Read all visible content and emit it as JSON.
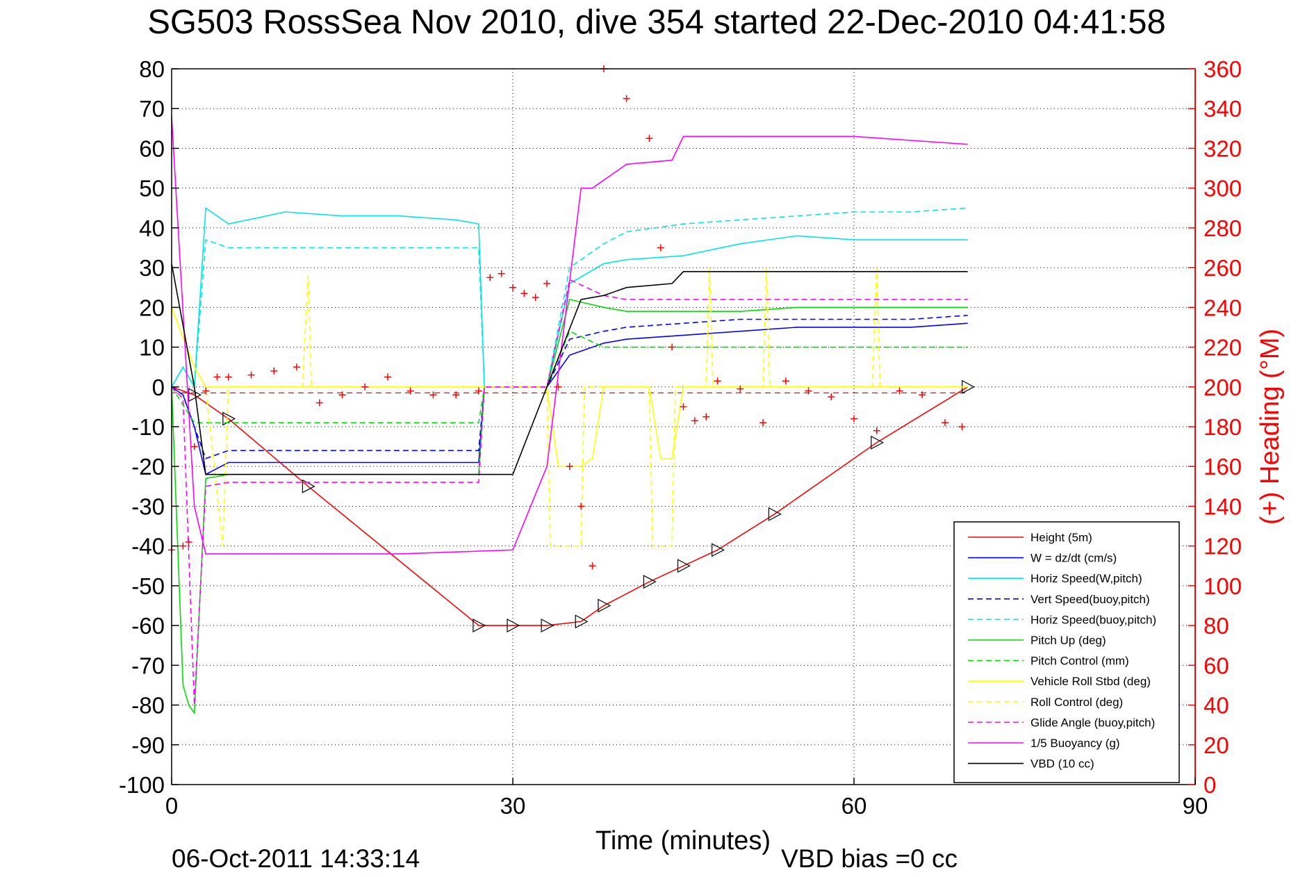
{
  "title": "SG503 RossSea Nov 2010, dive 354 started 22-Dec-2010 04:41:58",
  "footer": {
    "date": "06-Oct-2011 14:33:14",
    "vbd_bias": "VBD bias =0 cc"
  },
  "colors": {
    "left_axis": "#000000",
    "right_axis": "#ff0000",
    "grid": "#000000"
  },
  "chart_data": {
    "type": "line",
    "xlabel": "Time (minutes)",
    "ylabel": "",
    "y2label": "(+) Heading (°M)",
    "xlim": [
      0,
      90
    ],
    "ylim": [
      -100,
      80
    ],
    "y2lim": [
      0,
      360
    ],
    "xticks": [
      "0",
      "30",
      "60",
      "90"
    ],
    "yticks": [
      "80",
      "70",
      "60",
      "50",
      "40",
      "30",
      "20",
      "10",
      "0",
      "-10",
      "-20",
      "-30",
      "-40",
      "-50",
      "-60",
      "-70",
      "-80",
      "-90",
      "-100"
    ],
    "y2ticks": [
      "360",
      "340",
      "320",
      "300",
      "280",
      "260",
      "240",
      "220",
      "200",
      "180",
      "160",
      "140",
      "120",
      "100",
      "80",
      "60",
      "40",
      "20",
      "0"
    ],
    "grid": true,
    "legend_position": "bottom-right",
    "series": [
      {
        "name": "Height (5m)",
        "color": "#ff0000",
        "dash": "solid",
        "x": [
          0,
          2,
          5,
          12,
          27,
          30,
          33,
          36,
          38,
          42,
          45,
          48,
          53,
          62,
          70
        ],
        "y": [
          0,
          -2,
          -8,
          -25,
          -60,
          -60,
          -60,
          -59,
          -55,
          -49,
          -45,
          -41,
          -32,
          -14,
          0
        ]
      },
      {
        "name": "W = dz/dt (cm/s)",
        "color": "#0000ff",
        "dash": "solid",
        "x": [
          0,
          1,
          2,
          3,
          5,
          10,
          15,
          20,
          25,
          27,
          27.5,
          30,
          33,
          35,
          38,
          40,
          45,
          50,
          55,
          60,
          65,
          70
        ],
        "y": [
          0,
          -2,
          -10,
          -22,
          -19,
          -19,
          -19,
          -19,
          -19,
          -19,
          0,
          0,
          0,
          8,
          11,
          12,
          13,
          14,
          15,
          15,
          15,
          16
        ]
      },
      {
        "name": "Horiz Speed(W,pitch)",
        "color": "#00e5e5",
        "dash": "solid",
        "x": [
          0,
          1,
          2,
          3,
          5,
          10,
          15,
          20,
          25,
          27,
          27.5,
          30,
          33,
          35,
          38,
          40,
          45,
          50,
          55,
          60,
          65,
          70
        ],
        "y": [
          0,
          5,
          0,
          45,
          41,
          44,
          43,
          43,
          42,
          41,
          0,
          0,
          0,
          26,
          31,
          32,
          33,
          36,
          38,
          37,
          37,
          37
        ]
      },
      {
        "name": "Vert Speed(buoy,pitch)",
        "color": "#0000ff",
        "dash": "dashed",
        "x": [
          0,
          1,
          2,
          3,
          5,
          10,
          15,
          20,
          25,
          27,
          27.5,
          30,
          33,
          35,
          38,
          40,
          45,
          50,
          55,
          60,
          65,
          70
        ],
        "y": [
          0,
          -2,
          -10,
          -18,
          -16,
          -16,
          -16,
          -16,
          -16,
          -16,
          0,
          0,
          0,
          12,
          14,
          15,
          16,
          17,
          17,
          17,
          17,
          18
        ]
      },
      {
        "name": "Horiz Speed(buoy,pitch)",
        "color": "#00e5e5",
        "dash": "dashed",
        "x": [
          0,
          1,
          2,
          3,
          5,
          10,
          15,
          20,
          25,
          27,
          27.5,
          30,
          33,
          35,
          38,
          40,
          45,
          50,
          55,
          60,
          65,
          70
        ],
        "y": [
          0,
          5,
          0,
          37,
          35,
          35,
          35,
          35,
          35,
          35,
          0,
          0,
          0,
          30,
          36,
          39,
          41,
          42,
          43,
          44,
          44,
          45
        ]
      },
      {
        "name": "Pitch Up (deg)",
        "color": "#00dd00",
        "dash": "solid",
        "x": [
          0,
          1,
          1.5,
          2,
          3,
          5,
          10,
          15,
          20,
          25,
          27,
          27.5,
          30,
          33,
          35,
          38,
          40,
          45,
          50,
          55,
          60,
          65,
          70
        ],
        "y": [
          0,
          -75,
          -80,
          -82,
          -23,
          -22,
          -22,
          -22,
          -22,
          -22,
          -22,
          0,
          0,
          0,
          22,
          20,
          19,
          19,
          19,
          20,
          20,
          20,
          20
        ]
      },
      {
        "name": "Pitch Control (mm)",
        "color": "#00dd00",
        "dash": "dashed",
        "x": [
          0,
          2,
          3,
          5,
          10,
          15,
          20,
          25,
          27,
          27.5,
          30,
          33,
          35,
          38,
          40,
          45,
          50,
          55,
          60,
          65,
          70
        ],
        "y": [
          0,
          -9,
          -9,
          -9,
          -9,
          -9,
          -9,
          -9,
          -9,
          0,
          0,
          0,
          14,
          10,
          10,
          10,
          10,
          10,
          10,
          10,
          10
        ]
      },
      {
        "name": "Vehicle Roll Stbd (deg)",
        "color": "#ffff00",
        "dash": "solid",
        "x": [
          0,
          2,
          3,
          5,
          10,
          15,
          20,
          25,
          27,
          30,
          33,
          34,
          36,
          37,
          38,
          40,
          42,
          43,
          44,
          45,
          50,
          55,
          60,
          65,
          70
        ],
        "y": [
          20,
          5,
          0,
          0,
          0,
          0,
          0,
          0,
          0,
          0,
          0,
          -20,
          -20,
          -18,
          0,
          0,
          0,
          -18,
          -18,
          0,
          0,
          0,
          0,
          0,
          0
        ]
      },
      {
        "name": "Roll Control (deg)",
        "color": "#ffff00",
        "dash": "dashed",
        "x": [
          0,
          2,
          3,
          4.5,
          5,
          11.5,
          12,
          12.3,
          15,
          27,
          30,
          33,
          33.3,
          36,
          36.3,
          38,
          42,
          42.3,
          44,
          44.3,
          47,
          47.3,
          47.6,
          52,
          52.3,
          52.6,
          61.6,
          62,
          62.3,
          70
        ],
        "y": [
          20,
          5,
          0,
          -40,
          0,
          0,
          28,
          0,
          0,
          0,
          0,
          0,
          -40,
          -40,
          0,
          0,
          0,
          -40,
          -40,
          0,
          0,
          30,
          0,
          0,
          30,
          0,
          0,
          30,
          0,
          0
        ]
      },
      {
        "name": "Glide Angle (buoy,pitch)",
        "color": "#ff00ff",
        "dash": "dashed",
        "x": [
          0,
          1,
          2,
          3,
          5,
          10,
          15,
          20,
          25,
          27,
          27.5,
          30,
          33,
          35,
          38,
          40,
          45,
          50,
          55,
          60,
          65,
          70
        ],
        "y": [
          0,
          -3,
          -80,
          -25,
          -24,
          -24,
          -24,
          -24,
          -24,
          -24,
          0,
          0,
          0,
          27,
          23,
          22,
          22,
          22,
          22,
          22,
          22,
          22
        ]
      },
      {
        "name": "1/5 Buoyancy (g)",
        "color": "#ff00ff",
        "dash": "solid",
        "x": [
          0,
          2,
          3,
          10,
          20,
          30,
          33,
          36,
          37,
          38,
          40,
          44,
          45,
          50,
          60,
          65,
          70
        ],
        "y": [
          68,
          -30,
          -42,
          -42,
          -42,
          -41,
          -20,
          50,
          50,
          52,
          56,
          57,
          63,
          63,
          63,
          62,
          61
        ]
      },
      {
        "name": "VBD (10 cc)",
        "color": "#000000",
        "dash": "solid",
        "x": [
          0,
          2,
          3,
          10,
          20,
          27,
          30,
          33,
          36,
          38,
          40,
          44,
          45,
          50,
          60,
          70
        ],
        "y": [
          31,
          0,
          -22,
          -22,
          -22,
          -22,
          -22,
          0,
          22,
          23,
          25,
          26,
          29,
          29,
          29,
          29
        ]
      },
      {
        "name": "Heading",
        "color": "#ff0000",
        "dash": "none",
        "marker": "+",
        "axis": "right",
        "x": [
          0,
          1,
          1.5,
          2,
          3,
          4,
          5,
          7,
          9,
          11,
          13,
          15,
          17,
          19,
          21,
          23,
          25,
          27,
          28,
          29,
          30,
          31,
          32,
          33,
          34,
          35,
          36,
          37,
          38,
          40,
          42,
          43,
          44,
          45,
          46,
          47,
          48,
          50,
          52,
          54,
          56,
          58,
          60,
          62,
          64,
          66,
          68,
          69.5
        ],
        "y": [
          118,
          120,
          122,
          170,
          198,
          205,
          205,
          206,
          208,
          210,
          192,
          196,
          200,
          205,
          198,
          196,
          196,
          198,
          255,
          257,
          250,
          247,
          245,
          252,
          200,
          160,
          140,
          110,
          360,
          345,
          325,
          270,
          220,
          190,
          183,
          185,
          203,
          199,
          182,
          203,
          198,
          195,
          184,
          178,
          198,
          196,
          182,
          180
        ]
      }
    ]
  }
}
